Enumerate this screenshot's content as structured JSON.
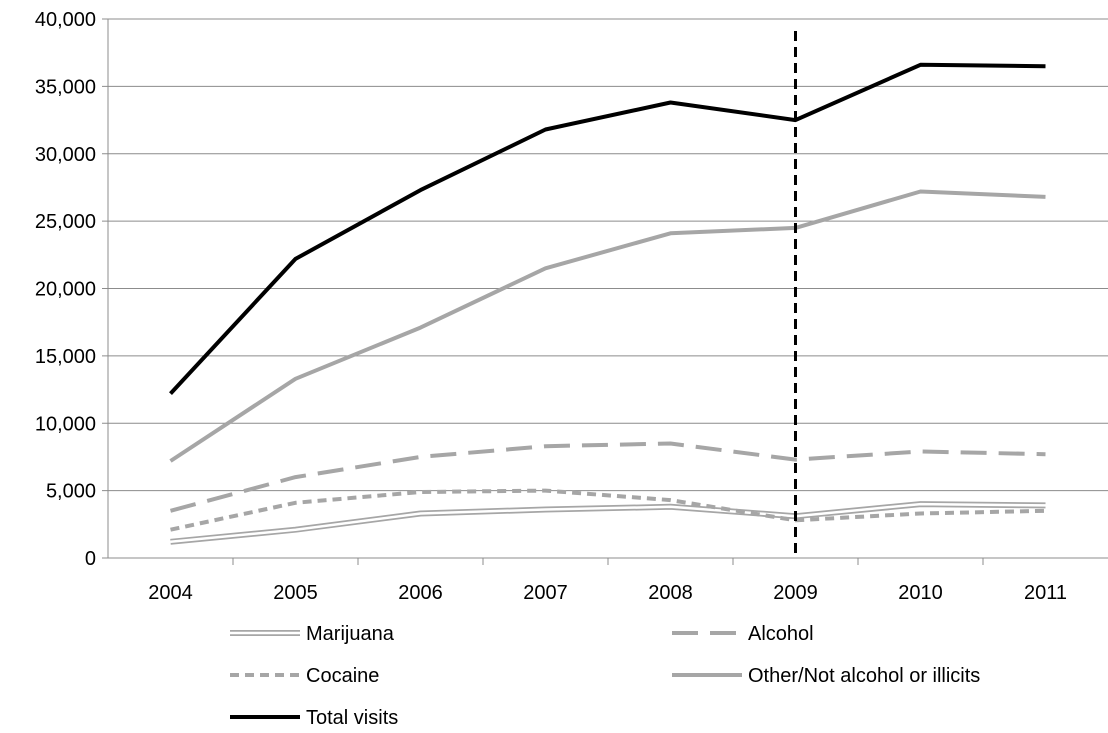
{
  "chart_data": {
    "type": "line",
    "title": "",
    "xlabel": "",
    "ylabel": "",
    "categories": [
      "2004",
      "2005",
      "2006",
      "2007",
      "2008",
      "2009",
      "2010",
      "2011"
    ],
    "ylim": [
      0,
      40000
    ],
    "yticks": [
      0,
      5000,
      10000,
      15000,
      20000,
      25000,
      30000,
      35000,
      40000
    ],
    "ytick_labels": [
      "0",
      "5,000",
      "10,000",
      "15,000",
      "20,000",
      "25,000",
      "30,000",
      "35,000",
      "40,000"
    ],
    "grid": true,
    "legend_position": "bottom",
    "vertical_marker": {
      "category": "2009",
      "style": "dashed",
      "color": "#000000"
    },
    "series": [
      {
        "name": "Marijuana",
        "values": [
          1200,
          2100,
          3300,
          3600,
          3800,
          3100,
          4000,
          3900
        ],
        "color": "#ffffff",
        "outline": "#a6a6a6",
        "style": "double"
      },
      {
        "name": "Alcohol",
        "values": [
          3500,
          6000,
          7500,
          8300,
          8500,
          7300,
          7900,
          7700
        ],
        "color": "#a6a6a6",
        "style": "long-dash"
      },
      {
        "name": "Cocaine",
        "values": [
          2100,
          4100,
          4900,
          5000,
          4300,
          2800,
          3300,
          3500
        ],
        "color": "#a6a6a6",
        "style": "short-dash"
      },
      {
        "name": "Other/Not alcohol or illicits",
        "values": [
          7200,
          13300,
          17100,
          21500,
          24100,
          24500,
          27200,
          26800
        ],
        "color": "#a6a6a6",
        "style": "solid"
      },
      {
        "name": "Total visits",
        "values": [
          12200,
          22200,
          27300,
          31800,
          33800,
          32500,
          36600,
          36500
        ],
        "color": "#000000",
        "style": "solid"
      }
    ]
  }
}
